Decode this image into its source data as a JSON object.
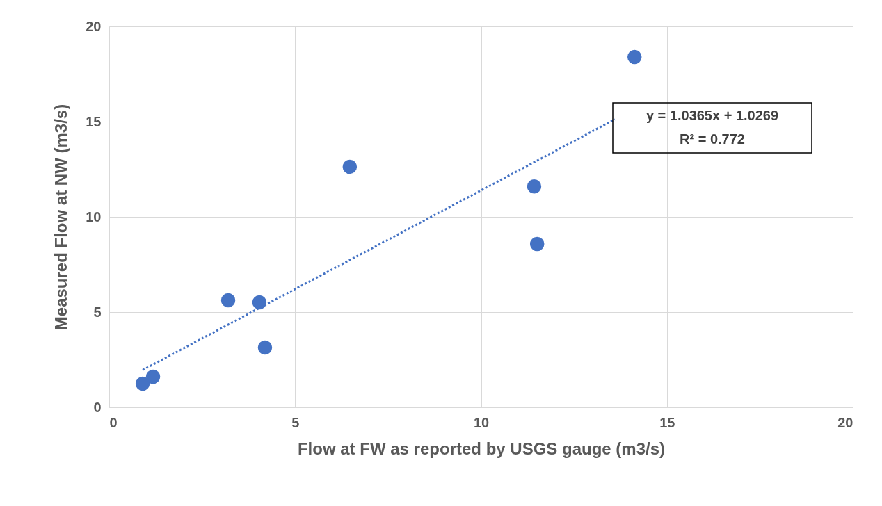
{
  "chart_data": {
    "type": "scatter",
    "xlabel": "Flow at FW as reported by USGS gauge (m3/s)",
    "ylabel": "Measured Flow at NW  (m3/s)",
    "xlim": [
      0,
      20
    ],
    "xticks": [
      0,
      5,
      10,
      15,
      20
    ],
    "ylim": [
      0,
      20
    ],
    "yticks": [
      0,
      5,
      10,
      15,
      20
    ],
    "grid": true,
    "marker": "circle",
    "series": [
      {
        "color": "#4472c4",
        "x": [
          0.9,
          1.18,
          3.2,
          4.04,
          4.19,
          6.47,
          11.43,
          11.51,
          14.13
        ],
        "values": [
          1.24,
          1.61,
          5.62,
          5.51,
          3.14,
          12.63,
          11.6,
          8.58,
          18.39
        ]
      },
      {
        "type": "line",
        "color": "#4472c4",
        "line_style": "dotted",
        "marker": "none",
        "x": [
          0.9,
          13.6
        ],
        "values": [
          1.96,
          15.12
        ]
      }
    ],
    "annotations": [
      "y = 1.0365x + 1.0269",
      "R² = 0.772"
    ]
  }
}
